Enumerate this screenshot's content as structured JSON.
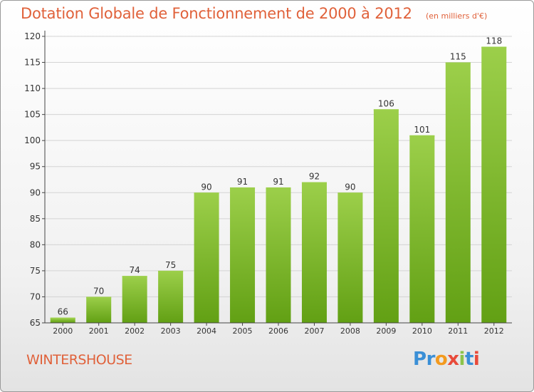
{
  "chart_data": {
    "type": "bar",
    "title": "Dotation Globale de Fonctionnement de 2000 à 2012",
    "subtitle": "(en milliers d'€)",
    "categories": [
      "2000",
      "2001",
      "2002",
      "2003",
      "2004",
      "2005",
      "2006",
      "2007",
      "2008",
      "2009",
      "2010",
      "2011",
      "2012"
    ],
    "values": [
      66,
      70,
      74,
      75,
      90,
      91,
      91,
      92,
      90,
      106,
      101,
      115,
      118
    ],
    "ylim": [
      65,
      120
    ],
    "yticks": [
      65,
      70,
      75,
      80,
      85,
      90,
      95,
      100,
      105,
      110,
      115,
      120
    ],
    "grid": true,
    "legend": "none",
    "bar_color": "#7cbb2a",
    "bar_color_light": "#9ccf4a",
    "bar_color_dark": "#62a014"
  },
  "place_label": "WINTERSHOUSE",
  "brand": {
    "text": "Proxiti",
    "letter_colors": [
      "#3a8fd6",
      "#3a8fd6",
      "#f39a1e",
      "#e84a3a",
      "#8bc34a",
      "#3a8fd6",
      "#e84a3a"
    ]
  },
  "colors": {
    "title": "#e0613a",
    "axis": "#444444",
    "grid": "#d4d4d4"
  }
}
